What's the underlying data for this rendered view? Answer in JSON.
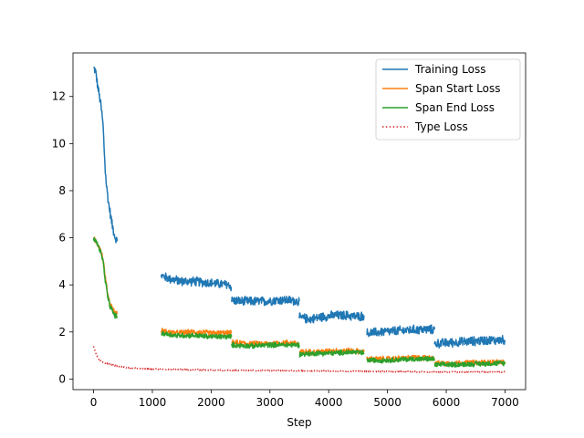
{
  "chart_data": {
    "type": "line",
    "title": "",
    "xlabel": "Step",
    "ylabel": "",
    "xlim": [
      -350,
      7350
    ],
    "ylim": [
      -0.45,
      13.85
    ],
    "grid": false,
    "legend_position": "top-right",
    "x_ticks": [
      0,
      1000,
      2000,
      3000,
      4000,
      5000,
      6000,
      7000
    ],
    "x_tick_labels": [
      "0",
      "1000",
      "2000",
      "3000",
      "4000",
      "5000",
      "6000",
      "7000"
    ],
    "y_ticks": [
      0,
      2,
      4,
      6,
      8,
      10,
      12
    ],
    "y_tick_labels": [
      "0",
      "2",
      "4",
      "6",
      "8",
      "10",
      "12"
    ],
    "series": [
      {
        "name": "Training Loss",
        "color": "#1f77b4",
        "style": "solid",
        "segments": [
          [
            [
              0,
              13.2
            ],
            [
              20,
              13.15
            ],
            [
              40,
              13.0
            ],
            [
              60,
              12.6
            ],
            [
              80,
              12.3
            ],
            [
              100,
              12.0
            ],
            [
              120,
              11.7
            ],
            [
              140,
              11.3
            ],
            [
              160,
              10.8
            ],
            [
              180,
              9.8
            ],
            [
              200,
              8.8
            ],
            [
              220,
              8.2
            ],
            [
              240,
              7.8
            ],
            [
              260,
              7.4
            ],
            [
              280,
              7.1
            ],
            [
              300,
              6.8
            ],
            [
              320,
              6.5
            ],
            [
              340,
              6.3
            ],
            [
              360,
              6.1
            ],
            [
              380,
              5.95
            ],
            [
              400,
              5.85
            ]
          ],
          [
            [
              1150,
              4.4
            ],
            [
              1300,
              4.25
            ],
            [
              1500,
              4.15
            ],
            [
              1700,
              4.15
            ],
            [
              1900,
              4.1
            ],
            [
              2100,
              4.05
            ],
            [
              2300,
              4.0
            ],
            [
              2350,
              3.9
            ]
          ],
          [
            [
              2350,
              3.35
            ],
            [
              2500,
              3.3
            ],
            [
              2700,
              3.3
            ],
            [
              2900,
              3.3
            ],
            [
              3100,
              3.35
            ],
            [
              3300,
              3.35
            ],
            [
              3500,
              3.3
            ]
          ],
          [
            [
              3500,
              2.6
            ],
            [
              3700,
              2.55
            ],
            [
              3900,
              2.65
            ],
            [
              4100,
              2.7
            ],
            [
              4300,
              2.7
            ],
            [
              4500,
              2.65
            ],
            [
              4600,
              2.7
            ]
          ],
          [
            [
              4650,
              1.95
            ],
            [
              4900,
              2.0
            ],
            [
              5200,
              2.05
            ],
            [
              5500,
              2.1
            ],
            [
              5800,
              2.1
            ]
          ],
          [
            [
              5800,
              1.5
            ],
            [
              6100,
              1.55
            ],
            [
              6400,
              1.6
            ],
            [
              6700,
              1.65
            ],
            [
              7000,
              1.65
            ]
          ]
        ]
      },
      {
        "name": "Span Start Loss",
        "color": "#ff7f0e",
        "style": "solid",
        "segments": [
          [
            [
              0,
              5.95
            ],
            [
              40,
              5.85
            ],
            [
              80,
              5.7
            ],
            [
              120,
              5.5
            ],
            [
              160,
              5.1
            ],
            [
              200,
              4.3
            ],
            [
              240,
              3.6
            ],
            [
              280,
              3.2
            ],
            [
              320,
              3.0
            ],
            [
              360,
              2.85
            ],
            [
              400,
              2.75
            ]
          ],
          [
            [
              1150,
              2.05
            ],
            [
              1400,
              1.95
            ],
            [
              1700,
              2.0
            ],
            [
              2000,
              1.95
            ],
            [
              2350,
              1.95
            ]
          ],
          [
            [
              2350,
              1.55
            ],
            [
              2700,
              1.5
            ],
            [
              3000,
              1.5
            ],
            [
              3300,
              1.55
            ],
            [
              3500,
              1.5
            ]
          ],
          [
            [
              3500,
              1.15
            ],
            [
              3800,
              1.15
            ],
            [
              4100,
              1.2
            ],
            [
              4400,
              1.2
            ],
            [
              4600,
              1.15
            ]
          ],
          [
            [
              4650,
              0.85
            ],
            [
              5000,
              0.85
            ],
            [
              5400,
              0.9
            ],
            [
              5800,
              0.9
            ]
          ],
          [
            [
              5800,
              0.65
            ],
            [
              6200,
              0.68
            ],
            [
              6600,
              0.7
            ],
            [
              7000,
              0.72
            ]
          ]
        ]
      },
      {
        "name": "Span End Loss",
        "color": "#2ca02c",
        "style": "solid",
        "segments": [
          [
            [
              0,
              5.95
            ],
            [
              40,
              5.85
            ],
            [
              80,
              5.65
            ],
            [
              120,
              5.4
            ],
            [
              160,
              5.0
            ],
            [
              200,
              4.2
            ],
            [
              240,
              3.5
            ],
            [
              280,
              3.1
            ],
            [
              320,
              2.9
            ],
            [
              360,
              2.7
            ],
            [
              400,
              2.65
            ]
          ],
          [
            [
              1150,
              1.95
            ],
            [
              1400,
              1.85
            ],
            [
              1700,
              1.85
            ],
            [
              2000,
              1.8
            ],
            [
              2350,
              1.8
            ]
          ],
          [
            [
              2350,
              1.45
            ],
            [
              2700,
              1.4
            ],
            [
              3000,
              1.45
            ],
            [
              3300,
              1.45
            ],
            [
              3500,
              1.45
            ]
          ],
          [
            [
              3500,
              1.05
            ],
            [
              3800,
              1.1
            ],
            [
              4100,
              1.1
            ],
            [
              4400,
              1.15
            ],
            [
              4600,
              1.1
            ]
          ],
          [
            [
              4650,
              0.8
            ],
            [
              5000,
              0.8
            ],
            [
              5400,
              0.85
            ],
            [
              5800,
              0.85
            ]
          ],
          [
            [
              5800,
              0.6
            ],
            [
              6200,
              0.62
            ],
            [
              6600,
              0.65
            ],
            [
              7000,
              0.68
            ]
          ]
        ]
      },
      {
        "name": "Type Loss",
        "color": "#d62728",
        "style": "dotted",
        "segments": [
          [
            [
              0,
              1.4
            ],
            [
              50,
              1.0
            ],
            [
              100,
              0.8
            ],
            [
              150,
              0.72
            ],
            [
              200,
              0.68
            ],
            [
              300,
              0.62
            ],
            [
              400,
              0.55
            ],
            [
              600,
              0.48
            ],
            [
              800,
              0.44
            ],
            [
              1000,
              0.42
            ],
            [
              1500,
              0.4
            ],
            [
              2000,
              0.38
            ],
            [
              2500,
              0.37
            ],
            [
              3000,
              0.36
            ],
            [
              3500,
              0.35
            ],
            [
              4000,
              0.34
            ],
            [
              4500,
              0.33
            ],
            [
              5000,
              0.32
            ],
            [
              5500,
              0.31
            ],
            [
              6000,
              0.3
            ],
            [
              6500,
              0.3
            ],
            [
              7000,
              0.3
            ]
          ]
        ]
      }
    ]
  }
}
